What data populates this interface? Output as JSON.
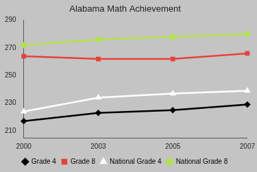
{
  "chart_data": {
    "type": "line",
    "title": "Alabama Math Achievement",
    "categories": [
      "2000",
      "2003",
      "2005",
      "2007"
    ],
    "series": [
      {
        "name": "Grade 4",
        "color": "#000000",
        "marker": "diamond",
        "values": [
          217,
          223,
          225,
          229
        ]
      },
      {
        "name": "Grade 8",
        "color": "#e8413a",
        "marker": "square",
        "values": [
          264,
          262,
          262,
          266
        ]
      },
      {
        "name": "National Grade 4",
        "color": "#ffffff",
        "marker": "triangle",
        "values": [
          224,
          234,
          237,
          239
        ]
      },
      {
        "name": "National Grade 8",
        "color": "#b5e04a",
        "marker": "circle",
        "values": [
          272,
          276,
          278,
          280
        ]
      }
    ],
    "ylim": [
      205,
      290
    ],
    "yticks": [
      210,
      230,
      250,
      270,
      290
    ],
    "grid": false,
    "legend": "bottom"
  }
}
